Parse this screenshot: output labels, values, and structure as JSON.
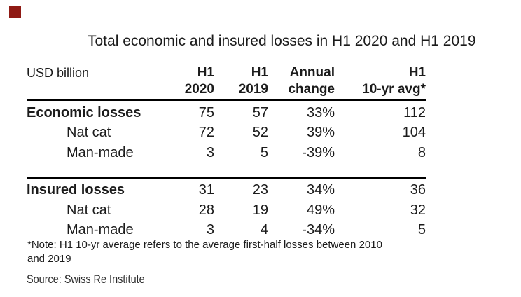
{
  "accent": {
    "square_color": "#8f1a14"
  },
  "title": "Total economic and insured losses in H1 2020 and H1 2019",
  "table": {
    "unit_label": "USD billion",
    "columns": [
      {
        "line1": "H1",
        "line2": "2020"
      },
      {
        "line1": "H1",
        "line2": "2019"
      },
      {
        "line1": "Annual",
        "line2": "change"
      },
      {
        "line1": "H1",
        "line2": "10-yr avg*"
      }
    ],
    "sections": [
      {
        "rows": [
          {
            "label": "Economic losses",
            "values": [
              "75",
              "57",
              "33%",
              "112"
            ]
          },
          {
            "label": "Nat cat",
            "values": [
              "72",
              "52",
              "39%",
              "104"
            ]
          },
          {
            "label": "Man-made",
            "values": [
              "3",
              "5",
              "-39%",
              "8"
            ]
          }
        ]
      },
      {
        "rows": [
          {
            "label": "Insured losses",
            "values": [
              "31",
              "23",
              "34%",
              "36"
            ]
          },
          {
            "label": "Nat cat",
            "values": [
              "28",
              "19",
              "49%",
              "32"
            ]
          },
          {
            "label": "Man-made",
            "values": [
              "3",
              "4",
              "-34%",
              "5"
            ]
          }
        ]
      }
    ]
  },
  "note": {
    "line1": "*Note: H1 10-yr average refers to the average first-half losses between 2010",
    "line2": "and 2019"
  },
  "source": "Source: Swiss Re Institute",
  "chart_data": {
    "type": "table",
    "title": "Total economic and insured losses in H1 2020 and H1 2019",
    "unit": "USD billion",
    "columns": [
      "H1 2020",
      "H1 2019",
      "Annual change",
      "H1 10-yr avg*"
    ],
    "rows": [
      {
        "label": "Economic losses",
        "h1_2020": 75,
        "h1_2019": 57,
        "annual_change_pct": 33,
        "h1_10yr_avg": 112
      },
      {
        "label": "Economic losses / Nat cat",
        "h1_2020": 72,
        "h1_2019": 52,
        "annual_change_pct": 39,
        "h1_10yr_avg": 104
      },
      {
        "label": "Economic losses / Man-made",
        "h1_2020": 3,
        "h1_2019": 5,
        "annual_change_pct": -39,
        "h1_10yr_avg": 8
      },
      {
        "label": "Insured losses",
        "h1_2020": 31,
        "h1_2019": 23,
        "annual_change_pct": 34,
        "h1_10yr_avg": 36
      },
      {
        "label": "Insured losses / Nat cat",
        "h1_2020": 28,
        "h1_2019": 19,
        "annual_change_pct": 49,
        "h1_10yr_avg": 32
      },
      {
        "label": "Insured losses / Man-made",
        "h1_2020": 3,
        "h1_2019": 4,
        "annual_change_pct": -34,
        "h1_10yr_avg": 5
      }
    ],
    "footnote": "*Note: H1 10-yr average refers to the average first-half losses between 2010 and 2019",
    "source": "Source: Swiss Re Institute"
  }
}
